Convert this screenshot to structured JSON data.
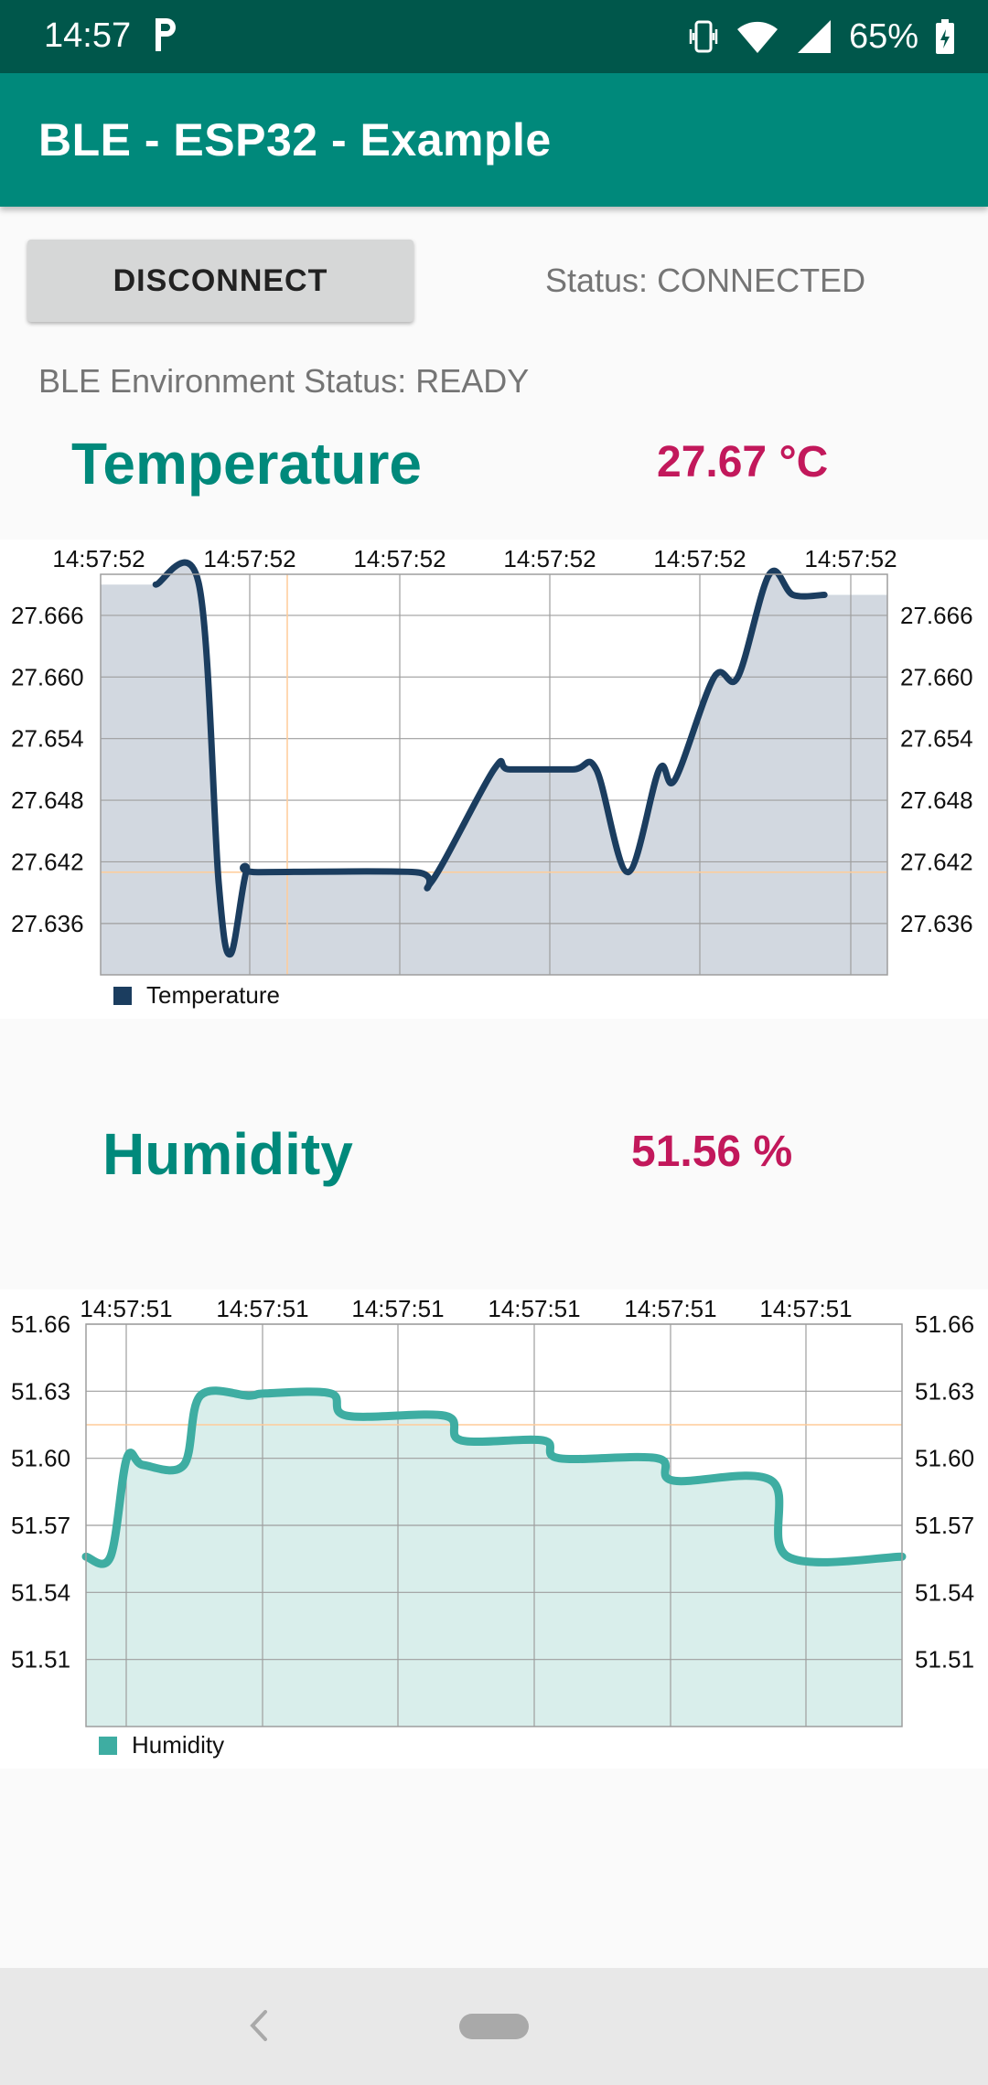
{
  "status_bar": {
    "time": "14:57",
    "battery": "65%"
  },
  "app": {
    "title": "BLE - ESP32 - Example"
  },
  "controls": {
    "disconnect_label": "DISCONNECT",
    "status_text": "Status: CONNECTED",
    "env_status_text": "BLE Environment Status: READY"
  },
  "temperature": {
    "title": "Temperature",
    "value": "27.67 °C"
  },
  "humidity": {
    "title": "Humidity",
    "value": "51.56 %"
  },
  "colors": {
    "status_bar": "#00574b",
    "app_bar": "#00897b",
    "title": "#00897b",
    "value": "#c2185b",
    "temperature_line": "#1b3d5f",
    "humidity_line": "#3eada2"
  },
  "chart_data": [
    {
      "type": "area",
      "series": [
        {
          "name": "Temperature",
          "color": "#1b3d5f",
          "points": [
            [
              0.07,
              27.669
            ],
            [
              0.125,
              27.669
            ],
            [
              0.15,
              27.64
            ],
            [
              0.165,
              27.633
            ],
            [
              0.185,
              27.641
            ],
            [
              0.2,
              27.641
            ],
            [
              0.4,
              27.641
            ],
            [
              0.42,
              27.64
            ],
            [
              0.5,
              27.651
            ],
            [
              0.52,
              27.651
            ],
            [
              0.6,
              27.651
            ],
            [
              0.63,
              27.651
            ],
            [
              0.67,
              27.641
            ],
            [
              0.71,
              27.651
            ],
            [
              0.73,
              27.65
            ],
            [
              0.78,
              27.66
            ],
            [
              0.81,
              27.66
            ],
            [
              0.85,
              27.67
            ],
            [
              0.88,
              27.668
            ],
            [
              0.92,
              27.668
            ]
          ]
        }
      ],
      "x_tick_labels": [
        "14:57:52",
        "14:57:52",
        "14:57:52",
        "14:57:52",
        "14:57:52",
        "14:57:52"
      ],
      "ylim": [
        27.631,
        27.67
      ],
      "y_ticks": [
        27.636,
        27.642,
        27.648,
        27.654,
        27.66,
        27.666
      ],
      "y_tick_labels": [
        "27.636",
        "27.642",
        "27.648",
        "27.654",
        "27.660",
        "27.666"
      ],
      "limit_line": 27.641,
      "legend": [
        "Temperature"
      ],
      "legend_position": "bottom-left",
      "grid": true
    },
    {
      "type": "area",
      "series": [
        {
          "name": "Humidity",
          "color": "#3eada2",
          "points": [
            [
              0.0,
              51.556
            ],
            [
              0.03,
              51.556
            ],
            [
              0.05,
              51.6
            ],
            [
              0.07,
              51.597
            ],
            [
              0.12,
              51.597
            ],
            [
              0.14,
              51.628
            ],
            [
              0.2,
              51.628
            ],
            [
              0.22,
              51.629
            ],
            [
              0.3,
              51.629
            ],
            [
              0.32,
              51.619
            ],
            [
              0.44,
              51.619
            ],
            [
              0.46,
              51.608
            ],
            [
              0.56,
              51.608
            ],
            [
              0.58,
              51.6
            ],
            [
              0.7,
              51.6
            ],
            [
              0.72,
              51.59
            ],
            [
              0.84,
              51.59
            ],
            [
              0.86,
              51.556
            ],
            [
              1.0,
              51.556
            ]
          ]
        }
      ],
      "x_tick_labels": [
        "14:57:51",
        "14:57:51",
        "14:57:51",
        "14:57:51",
        "14:57:51",
        "14:57:51"
      ],
      "ylim": [
        51.48,
        51.66
      ],
      "y_ticks": [
        51.51,
        51.54,
        51.57,
        51.6,
        51.63,
        51.66
      ],
      "y_tick_labels": [
        "51.51",
        "51.54",
        "51.57",
        "51.60",
        "51.63",
        "51.66"
      ],
      "limit_line": 51.615,
      "legend": [
        "Humidity"
      ],
      "legend_position": "bottom-left",
      "grid": true
    }
  ]
}
